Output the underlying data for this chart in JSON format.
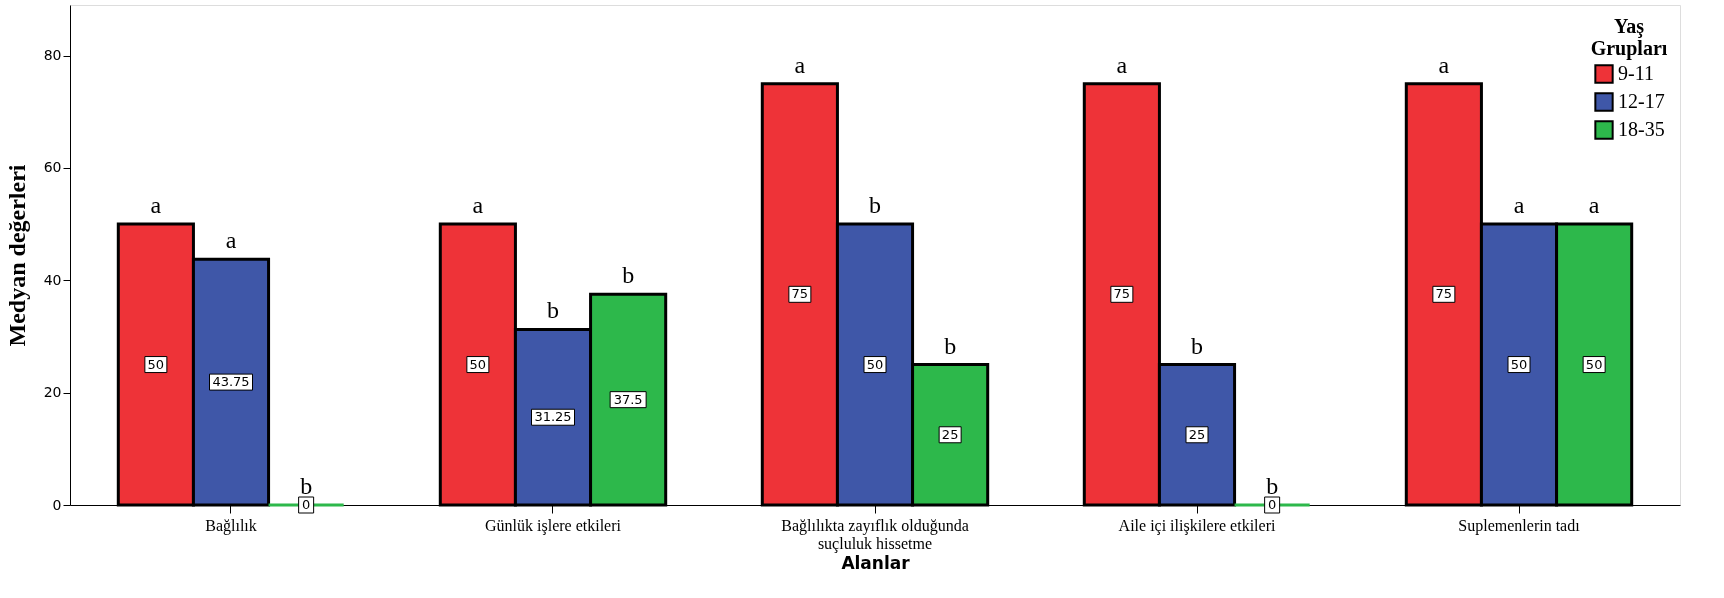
{
  "chart_data": {
    "type": "bar",
    "xlabel": "Alanlar",
    "ylabel": "Medyan değerleri",
    "legend_title": "Yaş Grupları",
    "categories": [
      "Bağlılık",
      "Günlük işlere etkileri",
      "Bağlılıkta zayıflık olduğunda\nsuçluluk hissetme",
      "Aile içi ilişkilere etkileri",
      "Suplemenlerin tadı"
    ],
    "series": [
      {
        "name": "9-11",
        "color": "#ee3338",
        "values": [
          50,
          50,
          75,
          75,
          75
        ]
      },
      {
        "name": "12-17",
        "color": "#3f57a8",
        "values": [
          43.75,
          31.25,
          50,
          25,
          50
        ]
      },
      {
        "name": "18-35",
        "color": "#2db84b",
        "values": [
          0,
          37.5,
          25,
          0,
          50
        ]
      }
    ],
    "ylim": [
      0,
      89
    ],
    "yticks": [
      0,
      20,
      40,
      60,
      80
    ],
    "grid": false,
    "legend": "top right",
    "data_labels": true,
    "annotations": [
      "a",
      "a",
      "b",
      "a",
      "b",
      "b",
      "a",
      "b",
      "b",
      "a",
      "b",
      "b",
      "a",
      "a",
      "a"
    ]
  }
}
